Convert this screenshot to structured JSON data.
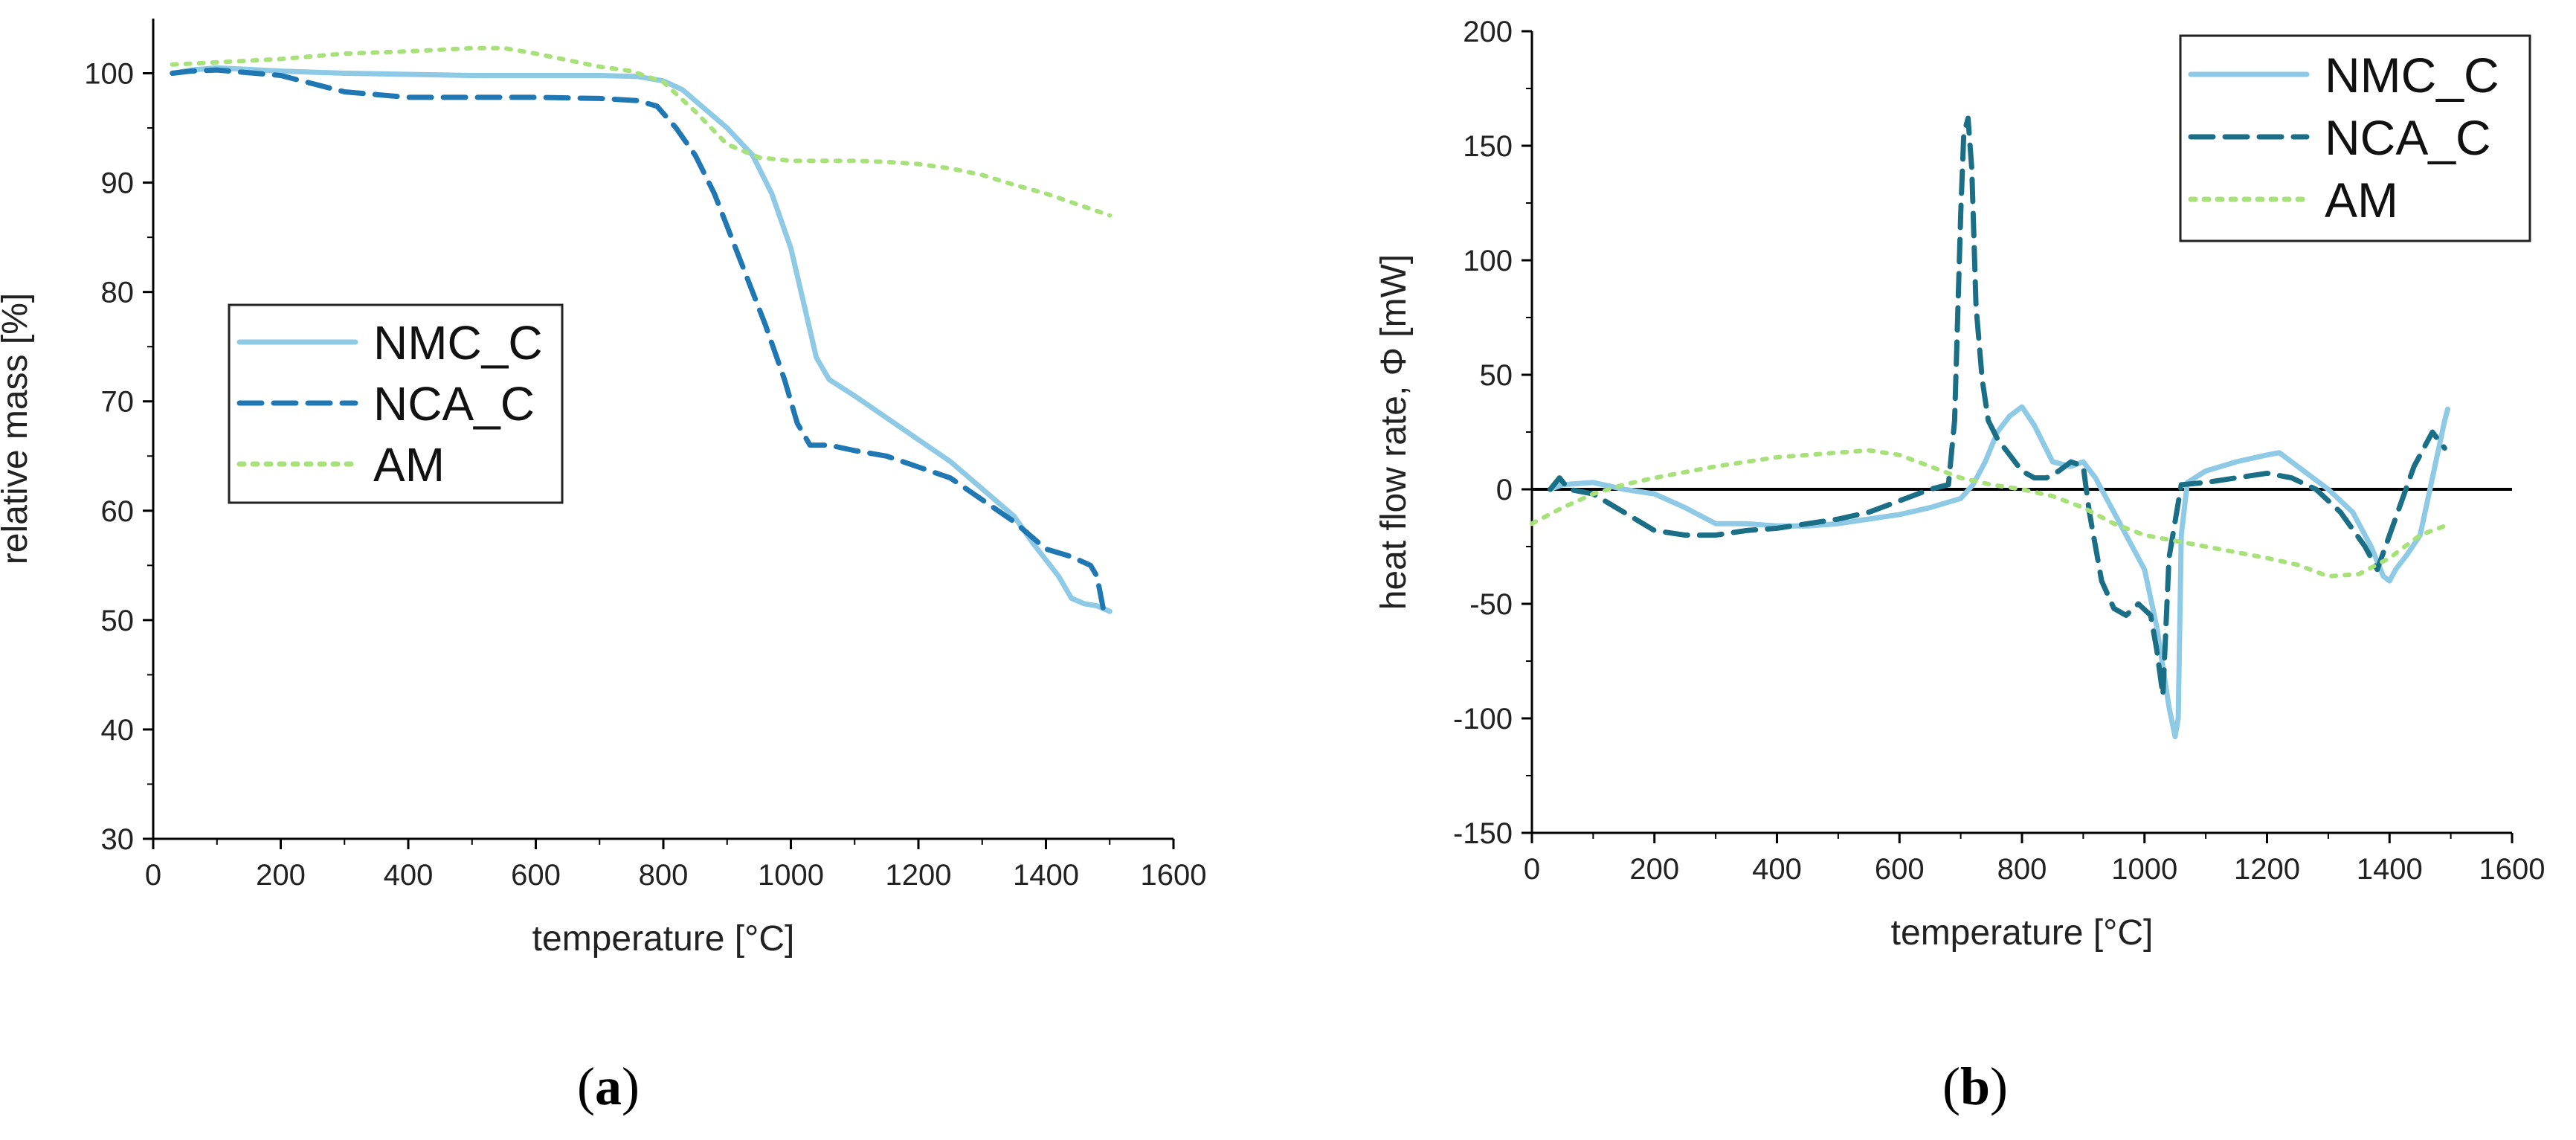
{
  "colors": {
    "nmc": "#8ecae6",
    "nca": "#1f78b4",
    "nca_b": "#1a6f86",
    "am": "#a8e07a",
    "axis": "#000000"
  },
  "panels": {
    "a": {
      "open": "(",
      "letter": "a",
      "close": ")"
    },
    "b": {
      "open": "(",
      "letter": "b",
      "close": ")"
    }
  },
  "chart_data": [
    {
      "type": "line",
      "id": "a",
      "title": "",
      "xlabel": "temperature [°C]",
      "ylabel": "relative mass [%]",
      "xlim": [
        0,
        1600
      ],
      "ylim": [
        30,
        105
      ],
      "xticks": [
        0,
        200,
        400,
        600,
        800,
        1000,
        1200,
        1400,
        1600
      ],
      "yticks": [
        30,
        40,
        50,
        60,
        70,
        80,
        90,
        100
      ],
      "legend_position": "middle-left",
      "series": [
        {
          "name": "NMC_C",
          "style": "solid",
          "colorKey": "nmc",
          "x": [
            30,
            60,
            100,
            200,
            300,
            400,
            500,
            600,
            700,
            760,
            800,
            830,
            860,
            900,
            940,
            970,
            1000,
            1020,
            1040,
            1060,
            1100,
            1150,
            1200,
            1250,
            1300,
            1350,
            1380,
            1420,
            1440,
            1460,
            1480,
            1500
          ],
          "y": [
            100.0,
            100.3,
            100.5,
            100.2,
            100.0,
            99.9,
            99.8,
            99.8,
            99.8,
            99.7,
            99.3,
            98.5,
            97.0,
            95.0,
            92.5,
            89.0,
            84.0,
            79.0,
            74.0,
            72.0,
            70.5,
            68.5,
            66.5,
            64.5,
            62.0,
            59.5,
            57.0,
            54.0,
            52.0,
            51.5,
            51.3,
            50.8
          ]
        },
        {
          "name": "NCA_C",
          "style": "dashed",
          "colorKey": "nca",
          "x": [
            30,
            60,
            100,
            200,
            300,
            400,
            500,
            600,
            700,
            760,
            790,
            820,
            850,
            880,
            900,
            930,
            960,
            990,
            1010,
            1030,
            1060,
            1100,
            1150,
            1200,
            1250,
            1300,
            1350,
            1400,
            1440,
            1470,
            1480,
            1490
          ],
          "y": [
            100.0,
            100.2,
            100.3,
            99.8,
            98.3,
            97.8,
            97.8,
            97.8,
            97.7,
            97.5,
            97.0,
            95.0,
            92.5,
            89.0,
            86.0,
            81.5,
            77.0,
            72.0,
            68.0,
            66.0,
            66.0,
            65.5,
            65.0,
            64.0,
            63.0,
            61.0,
            59.0,
            56.5,
            55.8,
            55.0,
            54.0,
            51.0
          ]
        },
        {
          "name": "AM",
          "style": "dotted",
          "colorKey": "am",
          "x": [
            30,
            100,
            200,
            300,
            400,
            500,
            550,
            600,
            700,
            750,
            800,
            850,
            900,
            950,
            1000,
            1050,
            1100,
            1150,
            1200,
            1250,
            1300,
            1350,
            1400,
            1450,
            1500
          ],
          "y": [
            100.8,
            101.0,
            101.3,
            101.8,
            102.0,
            102.3,
            102.3,
            101.8,
            100.6,
            100.2,
            99.2,
            96.5,
            93.5,
            92.3,
            92.0,
            92.0,
            92.0,
            91.9,
            91.7,
            91.3,
            90.7,
            89.8,
            89.0,
            88.0,
            87.0
          ]
        }
      ]
    },
    {
      "type": "line",
      "id": "b",
      "title": "",
      "xlabel": "temperature [°C]",
      "ylabel": "heat flow rate, Φ [mW]",
      "xlim": [
        0,
        1600
      ],
      "ylim": [
        -150,
        200
      ],
      "xticks": [
        0,
        200,
        400,
        600,
        800,
        1000,
        1200,
        1400,
        1600
      ],
      "yticks": [
        -150,
        -100,
        -50,
        0,
        50,
        100,
        150,
        200
      ],
      "zero_line": true,
      "legend_position": "top-right",
      "series": [
        {
          "name": "NMC_C",
          "style": "solid",
          "colorKey": "nmc",
          "x": [
            30,
            50,
            100,
            150,
            200,
            250,
            300,
            350,
            400,
            450,
            500,
            550,
            600,
            650,
            700,
            720,
            740,
            760,
            780,
            800,
            820,
            850,
            880,
            900,
            920,
            950,
            980,
            1000,
            1020,
            1040,
            1050,
            1055,
            1060,
            1070,
            1100,
            1150,
            1200,
            1220,
            1250,
            1300,
            1340,
            1370,
            1390,
            1400,
            1410,
            1430,
            1450,
            1470,
            1490,
            1495
          ],
          "y": [
            0,
            2,
            3,
            0,
            -2,
            -8,
            -15,
            -15,
            -16,
            -16,
            -15,
            -13,
            -11,
            -8,
            -4,
            2,
            12,
            25,
            32,
            36,
            28,
            12,
            10,
            12,
            5,
            -10,
            -25,
            -35,
            -60,
            -95,
            -108,
            -100,
            -20,
            3,
            8,
            12,
            15,
            16,
            10,
            0,
            -10,
            -25,
            -38,
            -40,
            -35,
            -28,
            -20,
            5,
            30,
            35
          ]
        },
        {
          "name": "NCA_C",
          "style": "dashed",
          "colorKey": "nca_b",
          "x": [
            30,
            45,
            60,
            100,
            150,
            200,
            250,
            300,
            350,
            400,
            450,
            500,
            550,
            600,
            650,
            680,
            690,
            700,
            705,
            712,
            718,
            725,
            735,
            745,
            760,
            780,
            800,
            820,
            840,
            860,
            880,
            900,
            910,
            930,
            950,
            970,
            990,
            1010,
            1020,
            1030,
            1040,
            1060,
            1100,
            1200,
            1240,
            1280,
            1320,
            1360,
            1380,
            1400,
            1420,
            1440,
            1470,
            1490
          ],
          "y": [
            0,
            5,
            0,
            -2,
            -10,
            -18,
            -20,
            -20,
            -18,
            -17,
            -15,
            -13,
            -10,
            -5,
            0,
            2,
            30,
            120,
            155,
            162,
            140,
            80,
            48,
            30,
            22,
            15,
            8,
            5,
            5,
            8,
            12,
            10,
            -10,
            -40,
            -52,
            -55,
            -50,
            -55,
            -70,
            -90,
            -30,
            2,
            3,
            7,
            5,
            0,
            -10,
            -25,
            -35,
            -20,
            -5,
            10,
            25,
            18
          ]
        },
        {
          "name": "AM",
          "style": "dotted",
          "colorKey": "am",
          "x": [
            0,
            50,
            100,
            150,
            200,
            300,
            400,
            500,
            550,
            600,
            650,
            700,
            750,
            800,
            850,
            900,
            950,
            1000,
            1100,
            1200,
            1250,
            1300,
            1350,
            1400,
            1450,
            1490
          ],
          "y": [
            -15,
            -8,
            -2,
            2,
            5,
            10,
            14,
            16,
            17,
            15,
            10,
            5,
            2,
            0,
            -3,
            -8,
            -15,
            -20,
            -25,
            -30,
            -33,
            -38,
            -37,
            -30,
            -20,
            -16
          ]
        }
      ]
    }
  ]
}
